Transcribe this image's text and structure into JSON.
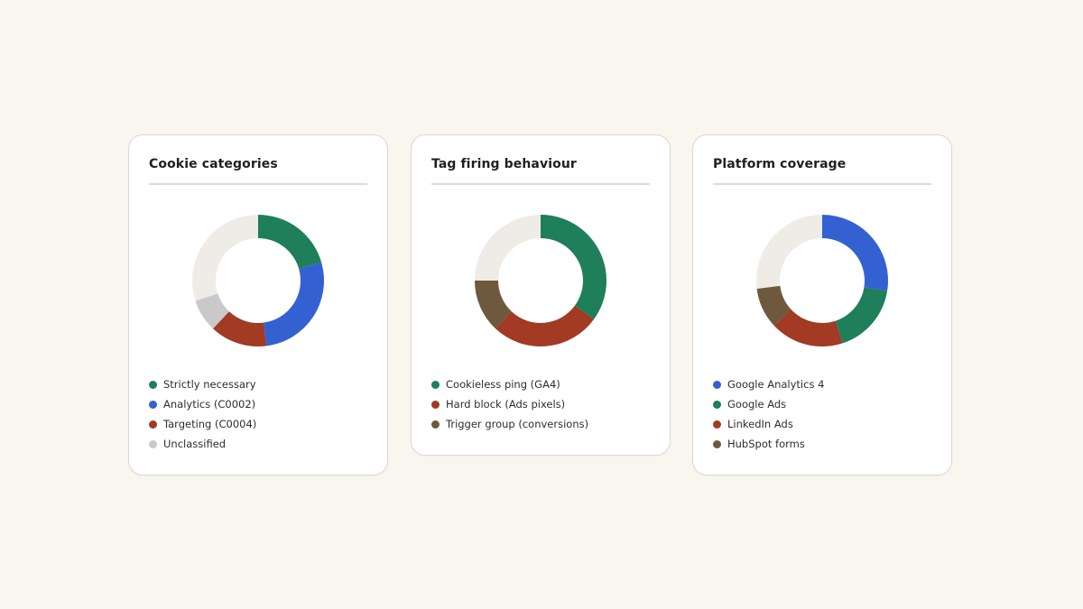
{
  "colors": {
    "track": "#efece7",
    "green": "#1e7f5a",
    "blue": "#3461d1",
    "red": "#a23a24",
    "grey": "#c9c8ca",
    "brown": "#6e593c"
  },
  "chart_data": [
    {
      "type": "pie",
      "title": "Cookie categories",
      "labels": [
        "Strictly necessary",
        "Analytics (C0002)",
        "Targeting (C0004)",
        "Unclassified"
      ],
      "values": [
        0.205,
        0.275,
        0.14,
        0.08
      ],
      "colors": [
        "#1e7f5a",
        "#3461d1",
        "#a23a24",
        "#c9c8ca"
      ],
      "legend_colors": [
        "#1e7f5a",
        "#3461d1",
        "#a23a24",
        "#c9c8ca"
      ],
      "unfilled_share": 0.3,
      "legend": "bottom"
    },
    {
      "type": "pie",
      "title": "Tag firing behaviour",
      "labels": [
        "Cookieless ping (GA4)",
        "Hard block (Ads pixels)",
        "Trigger group (conversions)"
      ],
      "values": [
        0.35,
        0.27,
        0.13
      ],
      "colors": [
        "#1e7f5a",
        "#a23a24",
        "#6e593c"
      ],
      "legend_colors": [
        "#1e7f5a",
        "#a23a24",
        "#6e593c"
      ],
      "unfilled_share": 0.25,
      "legend": "bottom"
    },
    {
      "type": "pie",
      "title": "Platform coverage",
      "labels": [
        "Google Analytics 4",
        "Google Ads",
        "LinkedIn Ads",
        "HubSpot forms"
      ],
      "values": [
        0.275,
        0.175,
        0.18,
        0.1
      ],
      "colors": [
        "#3461d1",
        "#1e7f5a",
        "#a23a24",
        "#6e593c"
      ],
      "legend_colors": [
        "#3461d1",
        "#1e7f5a",
        "#a23a24",
        "#6e593c"
      ],
      "unfilled_share": 0.27,
      "legend": "bottom"
    }
  ]
}
